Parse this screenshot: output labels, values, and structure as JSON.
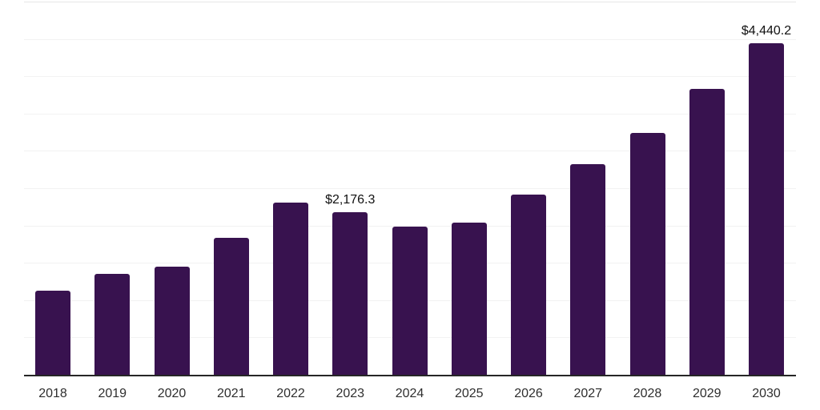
{
  "chart_data": {
    "type": "bar",
    "categories": [
      "2018",
      "2019",
      "2020",
      "2021",
      "2022",
      "2023",
      "2024",
      "2025",
      "2026",
      "2027",
      "2028",
      "2029",
      "2030"
    ],
    "values": [
      1130,
      1355,
      1450,
      1840,
      2305,
      2176.3,
      1985,
      2040,
      2415,
      2820,
      3240,
      3835,
      4440.2
    ],
    "labeled_points": [
      {
        "category": "2023",
        "label": "$2,176.3"
      },
      {
        "category": "2030",
        "label": "$4,440.2"
      }
    ],
    "title": "",
    "xlabel": "",
    "ylabel": "",
    "ylim": [
      0,
      5000
    ],
    "grid_step": 500,
    "grid": true,
    "legend": false,
    "bar_color": "#38124f",
    "axis_color": "#262626",
    "gridline_color": "#f2f2f2",
    "value_label_color": "#111111",
    "tick_label_color": "#2e2e2e",
    "background_color": "#ffffff"
  }
}
